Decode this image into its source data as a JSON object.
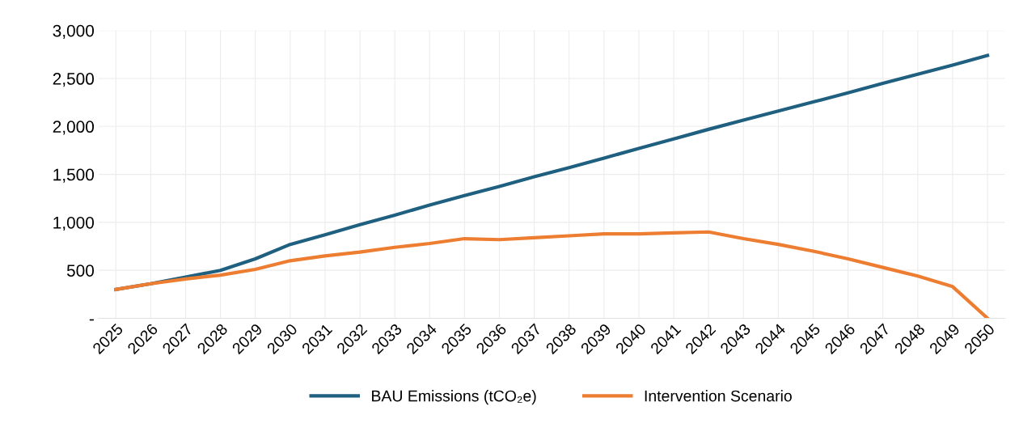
{
  "chart_data": {
    "type": "line",
    "categories": [
      "2025",
      "2026",
      "2027",
      "2028",
      "2029",
      "2030",
      "2031",
      "2032",
      "2033",
      "2034",
      "2035",
      "2036",
      "2037",
      "2038",
      "2039",
      "2040",
      "2041",
      "2042",
      "2043",
      "2044",
      "2045",
      "2046",
      "2047",
      "2048",
      "2049",
      "2050"
    ],
    "series": [
      {
        "name": "BAU Emissions (tCO₂e)",
        "color": "#1f5f7f",
        "values": [
          300,
          360,
          430,
          500,
          620,
          770,
          870,
          975,
          1075,
          1180,
          1280,
          1375,
          1475,
          1570,
          1670,
          1770,
          1870,
          1970,
          2065,
          2160,
          2255,
          2350,
          2450,
          2545,
          2640,
          2740
        ]
      },
      {
        "name": "Intervention Scenario",
        "color": "#ed7d31",
        "values": [
          300,
          360,
          410,
          450,
          510,
          600,
          650,
          690,
          740,
          780,
          830,
          820,
          840,
          860,
          880,
          880,
          890,
          900,
          830,
          770,
          700,
          620,
          530,
          440,
          330,
          0
        ]
      }
    ],
    "ylim": [
      0,
      3000
    ],
    "yticks": [
      {
        "value": 0,
        "label": "-"
      },
      {
        "value": 500,
        "label": "500"
      },
      {
        "value": 1000,
        "label": "1,000"
      },
      {
        "value": 1500,
        "label": "1,500"
      },
      {
        "value": 2000,
        "label": "2,000"
      },
      {
        "value": 2500,
        "label": "2,500"
      },
      {
        "value": 3000,
        "label": "3,000"
      }
    ],
    "grid": true,
    "legend": "bottom",
    "marker": "none",
    "line_style": "solid"
  }
}
